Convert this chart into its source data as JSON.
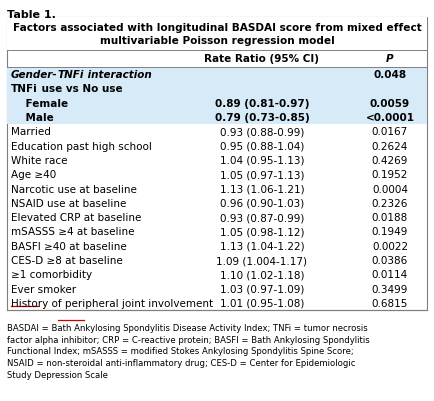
{
  "table_title": "Table 1.",
  "header_text": "Factors associated with longitudinal BASDAI score from mixed effect\nmultivariable Poisson regression model",
  "col_headers": [
    "",
    "Rate Ratio (95% CI)",
    "P"
  ],
  "rows": [
    {
      "label": "Gender-TNFi interaction",
      "rr": "",
      "p": "0.048",
      "bold": true,
      "italic": true,
      "shaded": true,
      "tnfi_underline": true
    },
    {
      "label": "TNFi use vs No use",
      "rr": "",
      "p": "",
      "bold": true,
      "italic": false,
      "shaded": true,
      "tnfi_underline": true
    },
    {
      "label": "    Female",
      "rr": "0.89 (0.81-0.97)",
      "p": "0.0059",
      "bold": true,
      "italic": false,
      "shaded": true,
      "tnfi_underline": false
    },
    {
      "label": "    Male",
      "rr": "0.79 (0.73-0.85)",
      "p": "<0.0001",
      "bold": true,
      "italic": false,
      "shaded": true,
      "tnfi_underline": false
    },
    {
      "label": "Married",
      "rr": "0.93 (0.88-0.99)",
      "p": "0.0167",
      "bold": false,
      "italic": false,
      "shaded": false,
      "tnfi_underline": false
    },
    {
      "label": "Education past high school",
      "rr": "0.95 (0.88-1.04)",
      "p": "0.2624",
      "bold": false,
      "italic": false,
      "shaded": false,
      "tnfi_underline": false
    },
    {
      "label": "White race",
      "rr": "1.04 (0.95-1.13)",
      "p": "0.4269",
      "bold": false,
      "italic": false,
      "shaded": false,
      "tnfi_underline": false
    },
    {
      "label": "Age ≥40",
      "rr": "1.05 (0.97-1.13)",
      "p": "0.1952",
      "bold": false,
      "italic": false,
      "shaded": false,
      "tnfi_underline": false
    },
    {
      "label": "Narcotic use at baseline",
      "rr": "1.13 (1.06-1.21)",
      "p": "0.0004",
      "bold": false,
      "italic": false,
      "shaded": false,
      "tnfi_underline": false
    },
    {
      "label": "NSAID use at baseline",
      "rr": "0.96 (0.90-1.03)",
      "p": "0.2326",
      "bold": false,
      "italic": false,
      "shaded": false,
      "tnfi_underline": false
    },
    {
      "label": "Elevated CRP at baseline",
      "rr": "0.93 (0.87-0.99)",
      "p": "0.0188",
      "bold": false,
      "italic": false,
      "shaded": false,
      "tnfi_underline": false
    },
    {
      "label": "mSASSS ≥4 at baseline",
      "rr": "1.05 (0.98-1.12)",
      "p": "0.1949",
      "bold": false,
      "italic": false,
      "shaded": false,
      "tnfi_underline": false
    },
    {
      "label": "BASFI ≥40 at baseline",
      "rr": "1.13 (1.04-1.22)",
      "p": "0.0022",
      "bold": false,
      "italic": false,
      "shaded": false,
      "tnfi_underline": false
    },
    {
      "label": "CES-D ≥8 at baseline",
      "rr": "1.09 (1.004-1.17)",
      "p": "0.0386",
      "bold": false,
      "italic": false,
      "shaded": false,
      "tnfi_underline": false
    },
    {
      "label": "≥1 comorbidity",
      "rr": "1.10 (1.02-1.18)",
      "p": "0.0114",
      "bold": false,
      "italic": false,
      "shaded": false,
      "tnfi_underline": false
    },
    {
      "label": "Ever smoker",
      "rr": "1.03 (0.97-1.09)",
      "p": "0.3499",
      "bold": false,
      "italic": false,
      "shaded": false,
      "tnfi_underline": false
    },
    {
      "label": "History of peripheral joint involvement",
      "rr": "1.01 (0.95-1.08)",
      "p": "0.6815",
      "bold": false,
      "italic": false,
      "shaded": false,
      "tnfi_underline": false
    }
  ],
  "footnote": "BASDAI = Bath Ankylosing Spondylitis Disease Activity Index; TNFi = tumor necrosis\nfactor alpha inhibitor; CRP = C-reactive protein; BASFI = Bath Ankylosing Spondylitis\nFunctional Index; mSASSS = modified Stokes Ankylosing Spondylitis Spine Score;\nNSAID = non-steroidal anti-inflammatory drug; CES-D = Center for Epidemiologic\nStudy Depression Scale",
  "shaded_color": "#d6eaf8",
  "border_color": "#7f7f7f",
  "bg_color": "#ffffff",
  "text_color": "#000000",
  "red_color": "#cc0000",
  "fig_width": 4.34,
  "fig_height": 4.02,
  "dpi": 100
}
